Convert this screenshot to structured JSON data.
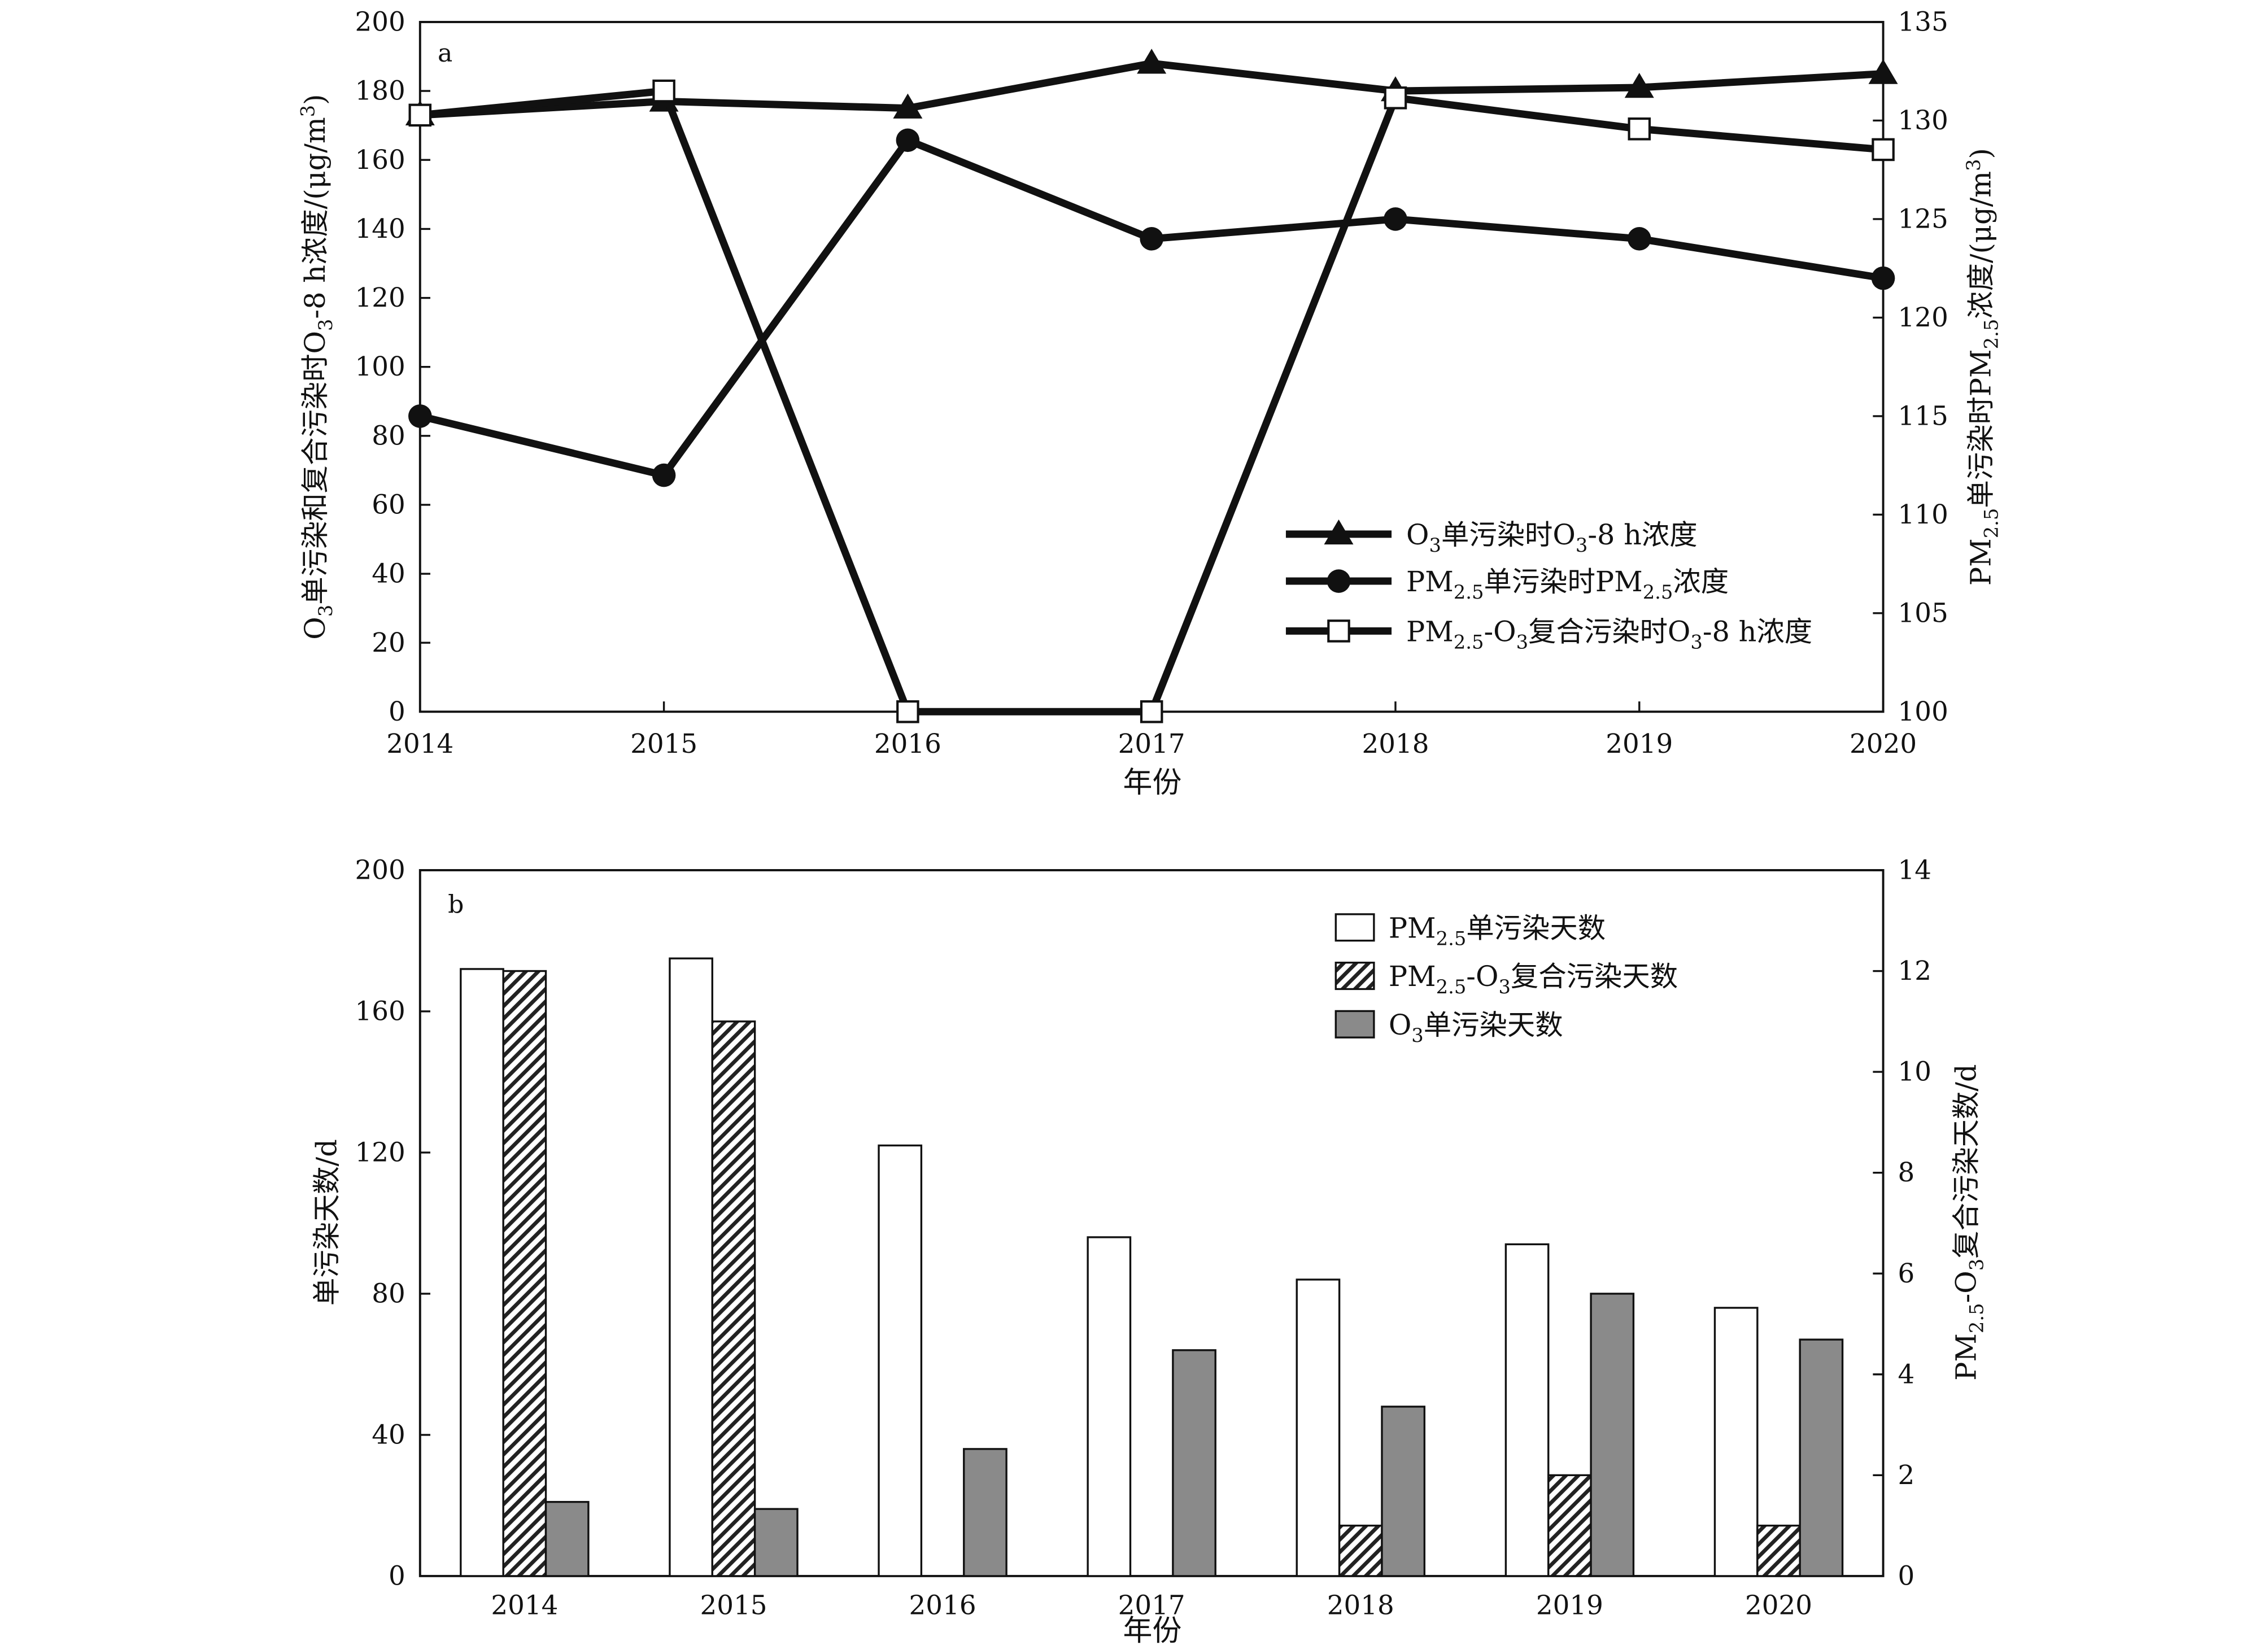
{
  "colors": {
    "line": "#111111",
    "bar_pm25": "#ffffff",
    "bar_compound": "#777777",
    "bar_o3": "#8a8a8a"
  },
  "chart_data": [
    {
      "panel": "a",
      "type": "line",
      "x": [
        "2014",
        "2015",
        "2016",
        "2017",
        "2018",
        "2019",
        "2020"
      ],
      "xlabel": "年份",
      "ylabel_left": "O3单污染和复合污染时O3-8 h浓度/(μg/m3)",
      "ylabel_right": "PM2.5单污染时PM2.5浓度/(μg/m3)",
      "ylim_left": [
        0,
        200
      ],
      "yticks_left": [
        0,
        20,
        40,
        60,
        80,
        100,
        120,
        140,
        160,
        180,
        200
      ],
      "ylim_right": [
        100,
        135
      ],
      "yticks_right": [
        100,
        105,
        110,
        115,
        120,
        125,
        130,
        135
      ],
      "legend_position": "center-right",
      "series": [
        {
          "name": "O3单污染时O3-8 h浓度",
          "axis": "left",
          "marker": "triangle",
          "values": [
            173,
            177,
            175,
            188,
            180,
            181,
            185
          ]
        },
        {
          "name": "PM2.5单污染时PM2.5浓度",
          "axis": "right",
          "marker": "circle",
          "values": [
            115,
            112,
            129,
            124,
            125,
            124,
            122
          ]
        },
        {
          "name": "PM2.5-O3复合污染时O3-8 h浓度",
          "axis": "left",
          "marker": "open-square",
          "values": [
            173,
            180,
            0,
            0,
            178,
            169,
            163
          ]
        }
      ]
    },
    {
      "panel": "b",
      "type": "bar",
      "categories": [
        "2014",
        "2015",
        "2016",
        "2017",
        "2018",
        "2019",
        "2020"
      ],
      "xlabel": "年份",
      "ylabel_left": "单污染天数/d",
      "ylabel_right": "PM2.5-O3复合污染天数/d",
      "ylim_left": [
        0,
        200
      ],
      "yticks_left": [
        0,
        40,
        80,
        120,
        160,
        200
      ],
      "ylim_right": [
        0,
        14
      ],
      "yticks_right": [
        0,
        2,
        4,
        6,
        8,
        10,
        12,
        14
      ],
      "legend_position": "top-right",
      "series": [
        {
          "name": "PM2.5单污染天数",
          "axis": "left",
          "style": "white",
          "values": [
            172,
            175,
            122,
            96,
            84,
            94,
            76
          ]
        },
        {
          "name": "PM2.5-O3复合污染天数",
          "axis": "right",
          "style": "hatched",
          "values": [
            12,
            11,
            0,
            0,
            1,
            2,
            1
          ]
        },
        {
          "name": "O3单污染天数",
          "axis": "left",
          "style": "gray",
          "values": [
            21,
            19,
            36,
            64,
            48,
            80,
            67
          ]
        }
      ]
    }
  ]
}
